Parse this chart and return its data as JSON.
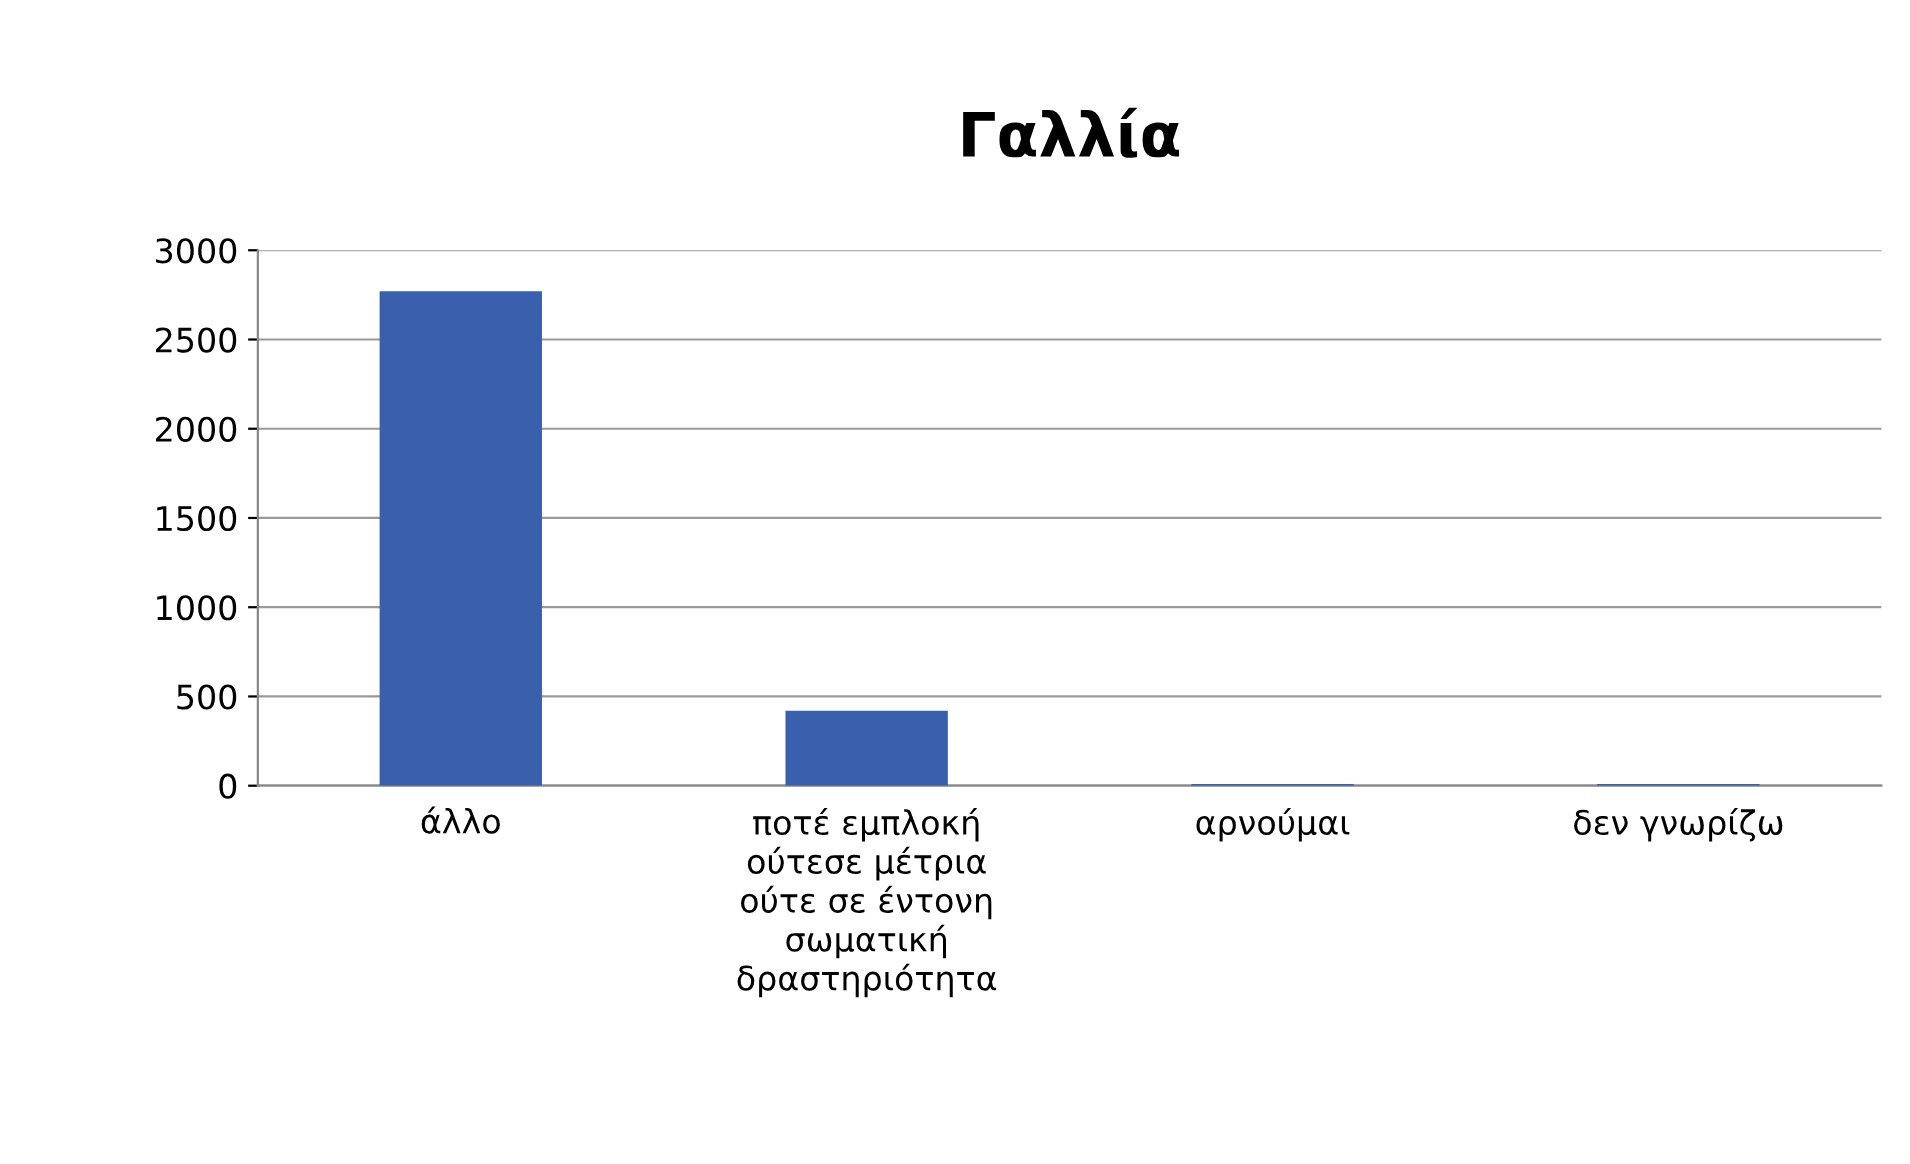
{
  "chart_data": {
    "type": "bar",
    "title": "Γαλλία",
    "categories": [
      "άλλο",
      "ποτέ εμπλοκή\nούτεσε μέτρια\nούτε σε έντονη\nσωματική\nδραστηριότητα",
      "αρνούμαι",
      "δεν γνωρίζω"
    ],
    "values": [
      2770,
      420,
      10,
      10
    ],
    "color": "#3a5fad",
    "ylim": [
      0,
      3000
    ],
    "yticks": [
      0,
      500,
      1000,
      1500,
      2000,
      2500,
      3000
    ],
    "grid": "y"
  }
}
